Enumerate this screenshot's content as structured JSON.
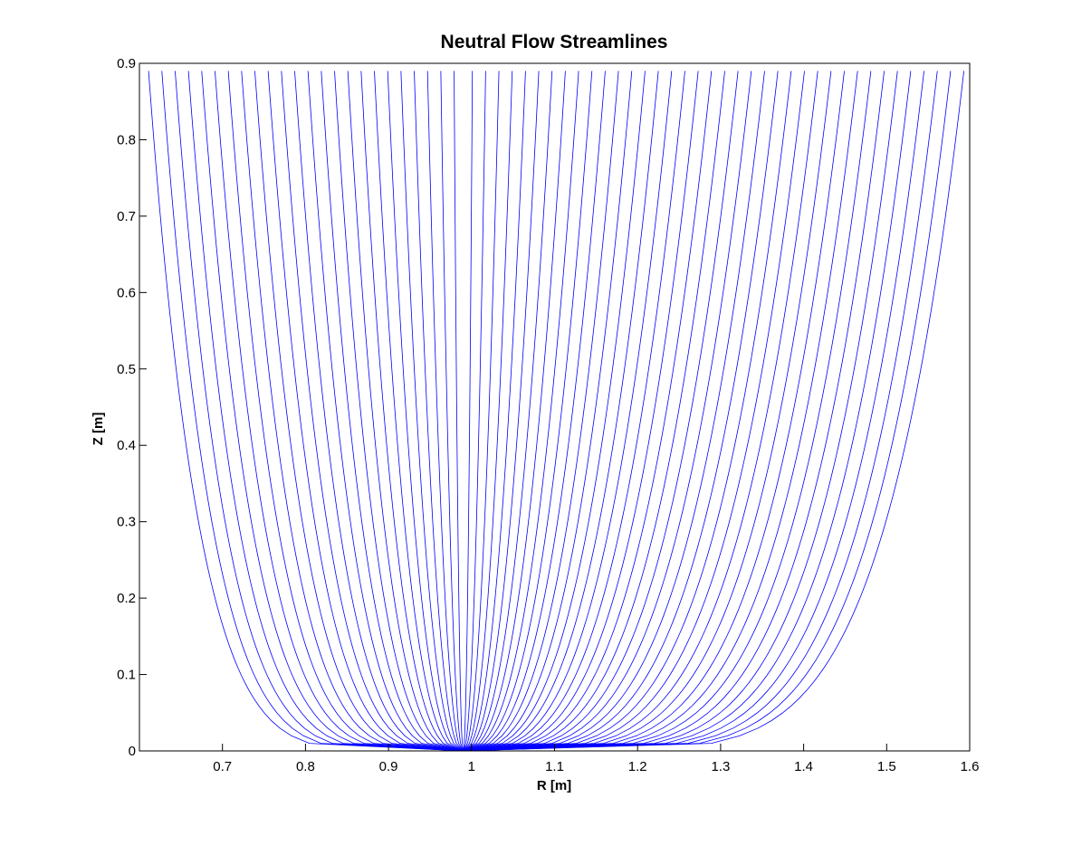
{
  "chart_data": {
    "type": "line",
    "title": "Neutral Flow Streamlines",
    "xlabel": "R [m]",
    "ylabel": "Z [m]",
    "xlim": [
      0.6,
      1.6
    ],
    "ylim": [
      0,
      0.9
    ],
    "xticks": [
      "0.7",
      "0.8",
      "0.9",
      "1",
      "1.1",
      "1.2",
      "1.3",
      "1.4",
      "1.5",
      "1.6"
    ],
    "yticks": [
      "0",
      "0.1",
      "0.2",
      "0.3",
      "0.4",
      "0.5",
      "0.6",
      "0.7",
      "0.8",
      "0.9"
    ],
    "grid": false,
    "line_color": "#0000ff",
    "source_point": {
      "r": 0.99,
      "z": 0.0
    },
    "streamline_top_z": 0.89,
    "left_streamlines_top_r": [
      0.611,
      0.627,
      0.643,
      0.659,
      0.675,
      0.691,
      0.707,
      0.723,
      0.739,
      0.755,
      0.771,
      0.787,
      0.803,
      0.819,
      0.835,
      0.851,
      0.867,
      0.883,
      0.899,
      0.915,
      0.931,
      0.947,
      0.963,
      0.979
    ],
    "right_streamlines_top_r": [
      1.001,
      1.017,
      1.033,
      1.049,
      1.065,
      1.081,
      1.097,
      1.113,
      1.129,
      1.145,
      1.161,
      1.177,
      1.193,
      1.209,
      1.225,
      1.241,
      1.257,
      1.273,
      1.289,
      1.305,
      1.321,
      1.337,
      1.353,
      1.369,
      1.385,
      1.401,
      1.417,
      1.433,
      1.449,
      1.465,
      1.481,
      1.497,
      1.513,
      1.529,
      1.545,
      1.561,
      1.577,
      1.593
    ]
  }
}
